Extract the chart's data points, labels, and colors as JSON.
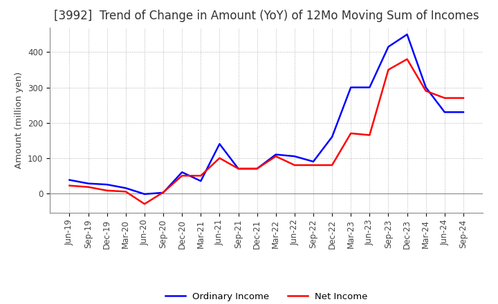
{
  "title": "[3992]  Trend of Change in Amount (YoY) of 12Mo Moving Sum of Incomes",
  "ylabel": "Amount (million yen)",
  "x_labels": [
    "Jun-19",
    "Sep-19",
    "Dec-19",
    "Mar-20",
    "Jun-20",
    "Sep-20",
    "Dec-20",
    "Mar-21",
    "Jun-21",
    "Sep-21",
    "Dec-21",
    "Mar-22",
    "Jun-22",
    "Sep-22",
    "Dec-22",
    "Mar-23",
    "Jun-23",
    "Sep-23",
    "Dec-23",
    "Mar-24",
    "Jun-24",
    "Sep-24"
  ],
  "ordinary_income": [
    38,
    28,
    25,
    15,
    -2,
    2,
    60,
    35,
    140,
    70,
    70,
    110,
    105,
    90,
    160,
    300,
    300,
    415,
    450,
    300,
    230,
    230
  ],
  "net_income": [
    22,
    18,
    8,
    5,
    -30,
    3,
    50,
    50,
    100,
    70,
    70,
    105,
    80,
    80,
    80,
    170,
    165,
    350,
    380,
    290,
    270,
    270
  ],
  "line_color_ordinary": "#0000ff",
  "line_color_net": "#ff0000",
  "background_color": "#ffffff",
  "grid_color": "#b0b0b0",
  "ylim": [
    -55,
    470
  ],
  "yticks": [
    0,
    100,
    200,
    300,
    400
  ],
  "title_fontsize": 12,
  "label_fontsize": 9.5,
  "tick_fontsize": 8.5
}
